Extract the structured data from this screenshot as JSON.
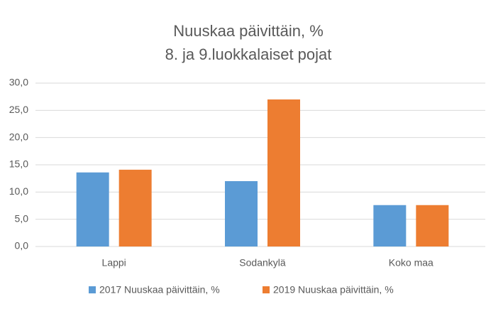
{
  "chart_data": {
    "type": "bar",
    "title": "Nuuskaa päivittäin, %",
    "subtitle": "8. ja 9.luokkalaiset pojat",
    "categories": [
      "Lappi",
      "Sodankylä",
      "Koko maa"
    ],
    "series": [
      {
        "name": "2017 Nuuskaa päivittäin, %",
        "color": "#5b9bd5",
        "values": [
          13.6,
          12.0,
          7.6
        ]
      },
      {
        "name": "2019 Nuuskaa päivittäin, %",
        "color": "#ed7d31",
        "values": [
          14.1,
          27.0,
          7.6
        ]
      }
    ],
    "ylim": [
      0,
      30
    ],
    "yticks": [
      {
        "value": 0,
        "label": "0,0"
      },
      {
        "value": 5,
        "label": "5,0"
      },
      {
        "value": 10,
        "label": "10,0"
      },
      {
        "value": 15,
        "label": "15,0"
      },
      {
        "value": 20,
        "label": "20,0"
      },
      {
        "value": 25,
        "label": "25,0"
      },
      {
        "value": 30,
        "label": "30,0"
      }
    ],
    "grid": true,
    "legend": "bottom"
  }
}
